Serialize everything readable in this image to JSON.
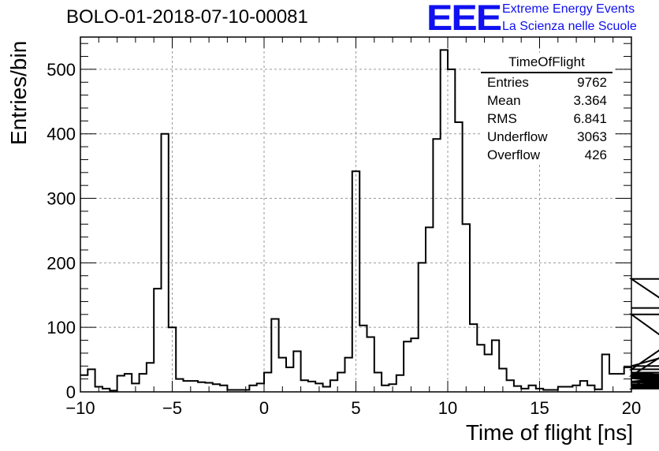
{
  "title": "BOLO-01-2018-07-10-00081",
  "logo": {
    "mark": "EEE",
    "line1": "Extreme Energy Events",
    "line2": "La Scienza nelle Scuole"
  },
  "stats": {
    "name": "TimeOfFlight",
    "rows": [
      {
        "key": "Entries",
        "value": "9762"
      },
      {
        "key": "Mean",
        "value": "3.364"
      },
      {
        "key": "RMS",
        "value": "6.841"
      },
      {
        "key": "Underflow",
        "value": "3063"
      },
      {
        "key": "Overflow",
        "value": "426"
      }
    ]
  },
  "chart_data": {
    "type": "histogram",
    "xlabel": "Time of flight [ns]",
    "ylabel": "Entries/bin",
    "xlim": [
      -10,
      20
    ],
    "ylim": [
      0,
      550
    ],
    "bin_width": 0.4,
    "grid": true,
    "xticks": [
      "−10",
      "−5",
      "0",
      "5",
      "10",
      "15",
      "20"
    ],
    "yticks": [
      "0",
      "100",
      "200",
      "300",
      "400",
      "500"
    ],
    "values": [
      26,
      35,
      8,
      5,
      2,
      25,
      28,
      13,
      28,
      45,
      160,
      400,
      100,
      20,
      17,
      17,
      15,
      14,
      12,
      10,
      3,
      3,
      3,
      10,
      13,
      30,
      113,
      53,
      38,
      63,
      18,
      16,
      13,
      8,
      18,
      30,
      53,
      342,
      103,
      85,
      30,
      10,
      12,
      26,
      78,
      83,
      200,
      255,
      392,
      530,
      500,
      418,
      260,
      105,
      73,
      58,
      80,
      36,
      18,
      9,
      5,
      10,
      5,
      3,
      3,
      8,
      8,
      10,
      17,
      10,
      4,
      58,
      28,
      28,
      38,
      10,
      5,
      22,
      28,
      27,
      23,
      16,
      23,
      21,
      12,
      10,
      10,
      25,
      120,
      5,
      5,
      25,
      35,
      175,
      30,
      5,
      5,
      5,
      5,
      5,
      15,
      8,
      40,
      130
    ]
  }
}
